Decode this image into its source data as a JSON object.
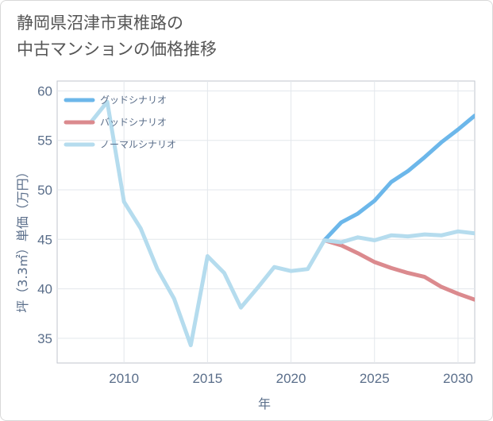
{
  "title_line1": "静岡県沼津市東椎路の",
  "title_line2": "中古マンションの価格推移",
  "chart_data": {
    "type": "line",
    "xlabel": "年",
    "ylabel": "坪（3.3㎡）単価（万円）",
    "xlim": [
      2006,
      2031
    ],
    "ylim": [
      32.5,
      61
    ],
    "xticks": [
      2010,
      2015,
      2020,
      2025,
      2030
    ],
    "yticks": [
      35,
      40,
      45,
      50,
      55,
      60
    ],
    "grid": true,
    "legend_position": "top-left",
    "series": [
      {
        "name": "グッドシナリオ",
        "color": "#6cb7ea",
        "x": [
          2022,
          2023,
          2024,
          2025,
          2026,
          2027,
          2028,
          2029,
          2030,
          2031
        ],
        "values": [
          44.9,
          46.7,
          47.6,
          48.9,
          50.8,
          51.9,
          53.3,
          54.8,
          56.1,
          57.5
        ]
      },
      {
        "name": "バッドシナリオ",
        "color": "#db8a8e",
        "x": [
          2022,
          2023,
          2024,
          2025,
          2026,
          2027,
          2028,
          2029,
          2030,
          2031
        ],
        "values": [
          44.9,
          44.4,
          43.6,
          42.7,
          42.1,
          41.6,
          41.2,
          40.2,
          39.5,
          38.9
        ]
      },
      {
        "name": "ノーマルシナリオ",
        "color": "#b5dcee",
        "x": [
          2008,
          2009,
          2010,
          2011,
          2012,
          2013,
          2014,
          2015,
          2016,
          2017,
          2018,
          2019,
          2020,
          2021,
          2022,
          2023,
          2024,
          2025,
          2026,
          2027,
          2028,
          2029,
          2030,
          2031
        ],
        "values": [
          56.8,
          58.9,
          48.8,
          46.1,
          42.0,
          39.0,
          34.3,
          43.3,
          41.6,
          38.1,
          40.1,
          42.2,
          41.8,
          42.0,
          44.9,
          44.7,
          45.2,
          44.9,
          45.4,
          45.3,
          45.5,
          45.4,
          45.8,
          45.6
        ]
      }
    ]
  }
}
